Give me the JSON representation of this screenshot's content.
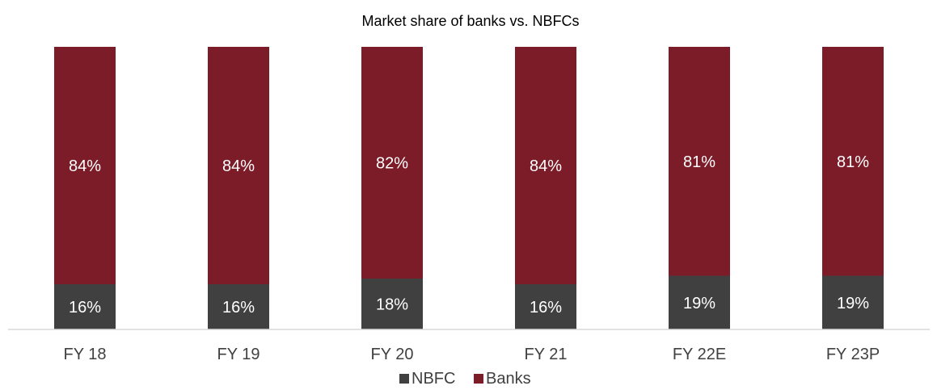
{
  "chart_data": {
    "type": "bar",
    "stacked": true,
    "title": "Market share of banks vs. NBFCs",
    "categories": [
      "FY 18",
      "FY 19",
      "FY 20",
      "FY 21",
      "FY 22E",
      "FY 23P"
    ],
    "series": [
      {
        "name": "NBFC",
        "values": [
          16,
          16,
          18,
          16,
          19,
          19
        ],
        "labels": [
          "16%",
          "16%",
          "18%",
          "16%",
          "19%",
          "19%"
        ]
      },
      {
        "name": "Banks",
        "values": [
          84,
          84,
          82,
          84,
          81,
          81
        ],
        "labels": [
          "84%",
          "84%",
          "82%",
          "84%",
          "81%",
          "81%"
        ]
      }
    ],
    "ylim": [
      0,
      100
    ],
    "grid": false,
    "legend": "bottom"
  },
  "colors": {
    "NBFC": "#404040",
    "Banks": "#7b1c28",
    "axis": "#d9d9d9"
  }
}
